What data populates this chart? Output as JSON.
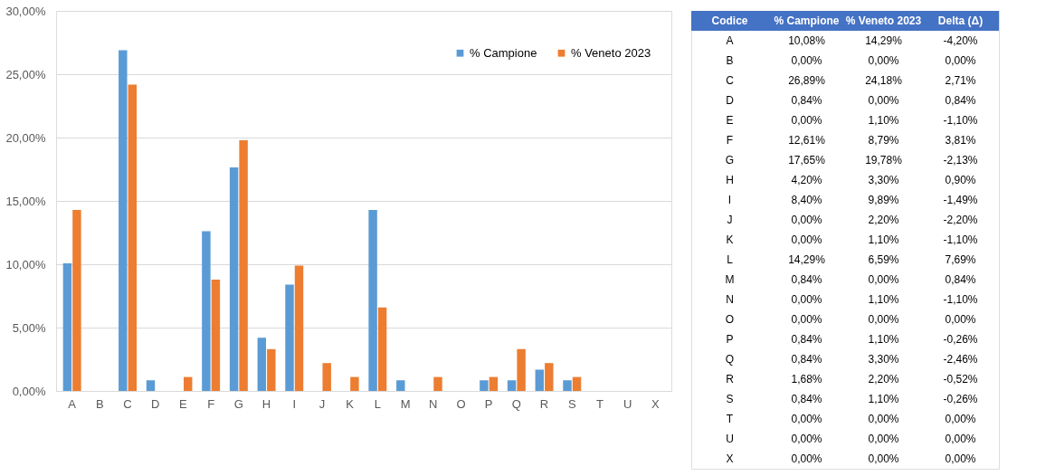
{
  "chart_data": [
    {
      "type": "bar",
      "categories": [
        "A",
        "B",
        "C",
        "D",
        "E",
        "F",
        "G",
        "H",
        "I",
        "J",
        "K",
        "L",
        "M",
        "N",
        "O",
        "P",
        "Q",
        "R",
        "S",
        "T",
        "U",
        "X"
      ],
      "series": [
        {
          "name": "% Campione",
          "color": "#5b9bd5",
          "values": [
            10.08,
            0,
            26.89,
            0.84,
            0,
            12.61,
            17.65,
            4.2,
            8.4,
            0,
            0,
            14.29,
            0.84,
            0,
            0,
            0.84,
            0.84,
            1.68,
            0.84,
            0,
            0,
            0
          ]
        },
        {
          "name": "% Veneto 2023",
          "color": "#ed7d31",
          "values": [
            14.29,
            0,
            24.18,
            0,
            1.1,
            8.79,
            19.78,
            3.3,
            9.89,
            2.2,
            1.1,
            6.59,
            0,
            1.1,
            0,
            1.1,
            3.3,
            2.2,
            1.1,
            0,
            0,
            0
          ]
        }
      ],
      "ylim": [
        0,
        30
      ],
      "yticks": [
        {
          "value": 0,
          "label": "0,00%"
        },
        {
          "value": 5,
          "label": "5,00%"
        },
        {
          "value": 10,
          "label": "10,00%"
        },
        {
          "value": 15,
          "label": "15,00%"
        },
        {
          "value": 20,
          "label": "20,00%"
        },
        {
          "value": 25,
          "label": "25,00%"
        },
        {
          "value": 30,
          "label": "30,00%"
        }
      ],
      "grid": "y",
      "legend": "top right"
    },
    {
      "type": "other",
      "xlabel": "Codice",
      "categories": [
        "A",
        "B",
        "C",
        "D",
        "E",
        "F",
        "G",
        "H",
        "I",
        "J",
        "K",
        "L",
        "M",
        "N",
        "O",
        "P",
        "Q",
        "R",
        "S",
        "T",
        "U",
        "X"
      ],
      "series": [
        {
          "name": "% Campione",
          "values": [
            10.08,
            0,
            26.89,
            0.84,
            0,
            12.61,
            17.65,
            4.2,
            8.4,
            0,
            0,
            14.29,
            0.84,
            0,
            0,
            0.84,
            0.84,
            1.68,
            0.84,
            0,
            0,
            0
          ],
          "value_labels": [
            "10,08%",
            "0,00%",
            "26,89%",
            "0,84%",
            "0,00%",
            "12,61%",
            "17,65%",
            "4,20%",
            "8,40%",
            "0,00%",
            "0,00%",
            "14,29%",
            "0,84%",
            "0,00%",
            "0,00%",
            "0,84%",
            "0,84%",
            "1,68%",
            "0,84%",
            "0,00%",
            "0,00%",
            "0,00%"
          ]
        },
        {
          "name": "% Veneto 2023",
          "values": [
            14.29,
            0,
            24.18,
            0,
            1.1,
            8.79,
            19.78,
            3.3,
            9.89,
            2.2,
            1.1,
            6.59,
            0,
            1.1,
            0,
            1.1,
            3.3,
            2.2,
            1.1,
            0,
            0,
            0
          ],
          "value_labels": [
            "14,29%",
            "0,00%",
            "24,18%",
            "0,00%",
            "1,10%",
            "8,79%",
            "19,78%",
            "3,30%",
            "9,89%",
            "2,20%",
            "1,10%",
            "6,59%",
            "0,00%",
            "1,10%",
            "0,00%",
            "1,10%",
            "3,30%",
            "2,20%",
            "1,10%",
            "0,00%",
            "0,00%",
            "0,00%"
          ]
        },
        {
          "name": "Delta (Δ)",
          "values": [
            -4.2,
            0,
            2.71,
            0.84,
            -1.1,
            3.81,
            -2.13,
            0.9,
            -1.49,
            -2.2,
            -1.1,
            7.69,
            0.84,
            -1.1,
            0,
            -0.26,
            -2.46,
            -0.52,
            -0.26,
            0,
            0,
            0
          ],
          "value_labels": [
            "-4,20%",
            "0,00%",
            "2,71%",
            "0,84%",
            "-1,10%",
            "3,81%",
            "-2,13%",
            "0,90%",
            "-1,49%",
            "-2,20%",
            "-1,10%",
            "7,69%",
            "0,84%",
            "-1,10%",
            "0,00%",
            "-0,26%",
            "-2,46%",
            "-0,52%",
            "-0,26%",
            "0,00%",
            "0,00%",
            "0,00%"
          ]
        }
      ]
    }
  ]
}
